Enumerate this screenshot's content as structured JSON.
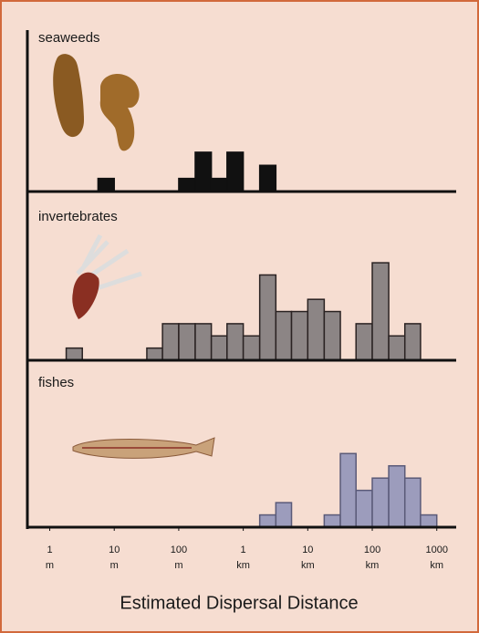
{
  "chart_data": [
    {
      "type": "histogram",
      "title": "seaweeds",
      "xscale": "log",
      "xlim": [
        0.45,
        2000000
      ],
      "ylim": [
        0,
        11
      ],
      "color": "#111111",
      "edgecolor": "#111111",
      "bins": [
        5.6,
        10,
        18,
        32,
        56,
        100,
        180,
        320,
        560,
        1000,
        1800,
        3200
      ],
      "counts": [
        1,
        0,
        0,
        0,
        0,
        1,
        3,
        1,
        3,
        0,
        2
      ]
    },
    {
      "type": "histogram",
      "title": "invertebrates",
      "xscale": "log",
      "xlim": [
        0.45,
        2000000
      ],
      "ylim": [
        0,
        11
      ],
      "color": "#8c8585",
      "edgecolor": "#2a2222",
      "bins": [
        1.8,
        3.2,
        5.6,
        10,
        18,
        32,
        56,
        100,
        180,
        320,
        560,
        1000,
        1800,
        3200,
        5600,
        10000,
        18000,
        32000,
        56000,
        100000,
        180000,
        320000,
        560000
      ],
      "counts": [
        1,
        0,
        0,
        0,
        0,
        1,
        3,
        3,
        3,
        2,
        3,
        2,
        7,
        4,
        4,
        5,
        4,
        0,
        3,
        8,
        2,
        3
      ]
    },
    {
      "type": "histogram",
      "title": "fishes",
      "xscale": "log",
      "xlim": [
        0.45,
        2000000
      ],
      "ylim": [
        0,
        11
      ],
      "color": "#9c9cbc",
      "edgecolor": "#5a5a78",
      "bins": [
        1800,
        3200,
        5600,
        10000,
        18000,
        32000,
        56000,
        100000,
        180000,
        320000,
        560000,
        1000000
      ],
      "counts": [
        1,
        2,
        0,
        0,
        1,
        6,
        3,
        4,
        5,
        4,
        1
      ],
      "xlabel": "Estimated Dispersal Distance",
      "xticks": [
        {
          "value": 1,
          "label": "1 m"
        },
        {
          "value": 10,
          "label": "10 m"
        },
        {
          "value": 100,
          "label": "100 m"
        },
        {
          "value": 1000,
          "label": "1 km"
        },
        {
          "value": 10000,
          "label": "10 km"
        },
        {
          "value": 100000,
          "label": "100 km"
        },
        {
          "value": 1000000,
          "label": "1000 km"
        }
      ]
    }
  ]
}
